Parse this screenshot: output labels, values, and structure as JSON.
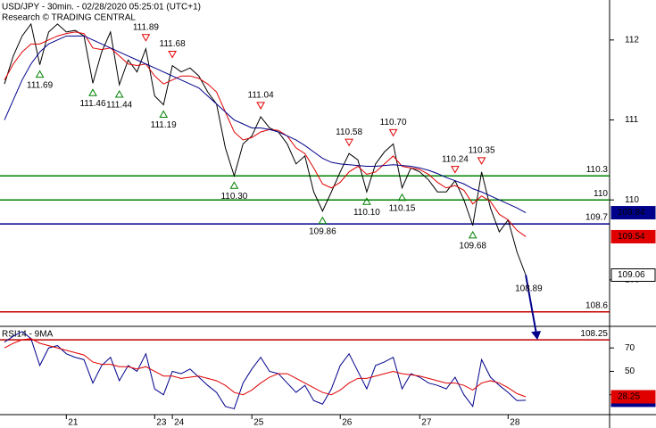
{
  "chart_data": [
    {
      "type": "line",
      "title": "USD/JPY - 30min. - 02/28/2020 05:25:01 (UTC+1)",
      "subtitle": "Research © TRADING CENTRAL",
      "categories": [
        null,
        null,
        null,
        null,
        null,
        null,
        null,
        "21",
        null,
        null,
        null,
        null,
        null,
        null,
        null,
        null,
        null,
        "23",
        null,
        "24",
        null,
        null,
        null,
        null,
        null,
        null,
        null,
        null,
        "25",
        null,
        null,
        null,
        null,
        null,
        null,
        null,
        null,
        null,
        "26",
        null,
        null,
        null,
        null,
        null,
        null,
        null,
        null,
        "27",
        null,
        null,
        null,
        null,
        null,
        null,
        null,
        null,
        null,
        "28",
        null,
        null
      ],
      "ylim": [
        108.43,
        112.5
      ],
      "yticks": [
        109,
        110,
        111,
        112
      ],
      "levels": [
        {
          "value": 110.3,
          "color": "#008000"
        },
        {
          "value": 110,
          "color": "#008000"
        },
        {
          "value": 109.7,
          "color": "#00008b"
        },
        {
          "value": 108.6,
          "color": "#c00000"
        },
        {
          "value": 108.25,
          "color": "#c00000"
        }
      ],
      "target_label": 108.89,
      "series": [
        {
          "color": "#000000",
          "tag": true,
          "values": [
            111.45,
            111.8,
            112.05,
            112.2,
            111.69,
            112.1,
            112.2,
            112.1,
            112.12,
            112.05,
            111.46,
            111.85,
            112.1,
            111.44,
            111.75,
            111.6,
            111.89,
            111.3,
            111.19,
            111.68,
            111.6,
            111.65,
            111.55,
            111.35,
            111.2,
            110.65,
            110.3,
            110.7,
            110.8,
            111.04,
            110.9,
            110.85,
            110.7,
            110.45,
            110.55,
            110.1,
            109.86,
            110.1,
            110.35,
            110.58,
            110.5,
            110.1,
            110.45,
            110.6,
            110.7,
            110.15,
            110.4,
            110.35,
            110.25,
            110.1,
            110.1,
            110.24,
            110.0,
            109.68,
            110.35,
            109.9,
            109.6,
            109.75,
            109.35,
            109.06
          ]
        },
        {
          "color": "#e00000",
          "tag": true,
          "values": [
            111.5,
            111.7,
            111.85,
            111.95,
            111.95,
            112.0,
            112.05,
            112.08,
            112.1,
            112.08,
            111.9,
            111.88,
            111.9,
            111.8,
            111.7,
            111.68,
            111.7,
            111.55,
            111.45,
            111.5,
            111.55,
            111.55,
            111.52,
            111.45,
            111.35,
            111.1,
            110.85,
            110.75,
            110.78,
            110.85,
            110.88,
            110.87,
            110.8,
            110.65,
            110.58,
            110.4,
            110.2,
            110.15,
            110.22,
            110.35,
            110.42,
            110.32,
            110.35,
            110.45,
            110.55,
            110.42,
            110.4,
            110.38,
            110.32,
            110.22,
            110.15,
            110.18,
            110.12,
            109.95,
            110.05,
            109.98,
            109.82,
            109.75,
            109.62,
            109.54
          ]
        },
        {
          "color": "#00008b",
          "tag": true,
          "values": [
            111.0,
            111.25,
            111.5,
            111.7,
            111.85,
            111.95,
            112.0,
            112.05,
            112.05,
            112.05,
            112.0,
            111.95,
            111.9,
            111.85,
            111.8,
            111.75,
            111.7,
            111.65,
            111.6,
            111.55,
            111.5,
            111.45,
            111.4,
            111.3,
            111.2,
            111.1,
            111.0,
            110.95,
            110.9,
            110.9,
            110.88,
            110.85,
            110.8,
            110.75,
            110.68,
            110.6,
            110.52,
            110.47,
            110.45,
            110.44,
            110.43,
            110.42,
            110.42,
            110.43,
            110.44,
            110.43,
            110.42,
            110.4,
            110.37,
            110.33,
            110.28,
            110.24,
            110.2,
            110.14,
            110.1,
            110.05,
            110.0,
            109.95,
            109.9,
            109.84
          ]
        },
        {
          "color": "#e00000",
          "marker": "down",
          "values": [
            null,
            null,
            null,
            null,
            null,
            null,
            null,
            null,
            null,
            null,
            null,
            null,
            null,
            null,
            null,
            null,
            111.89,
            null,
            null,
            111.68,
            null,
            null,
            null,
            null,
            null,
            null,
            null,
            null,
            null,
            111.04,
            null,
            null,
            null,
            null,
            null,
            null,
            null,
            null,
            null,
            110.58,
            null,
            null,
            null,
            null,
            110.7,
            null,
            null,
            null,
            null,
            null,
            null,
            110.24,
            null,
            null,
            110.35,
            null,
            null,
            null,
            null,
            null
          ],
          "value_labels": [
            null,
            null,
            null,
            null,
            null,
            null,
            null,
            null,
            null,
            null,
            null,
            null,
            null,
            null,
            null,
            null,
            "111.89",
            null,
            null,
            "111.68",
            null,
            null,
            null,
            null,
            null,
            null,
            null,
            null,
            null,
            "111.04",
            null,
            null,
            null,
            null,
            null,
            null,
            null,
            null,
            null,
            "110.58",
            null,
            null,
            null,
            null,
            "110.70",
            null,
            null,
            null,
            null,
            null,
            null,
            "110.24",
            null,
            null,
            "110.35",
            null,
            null,
            null,
            null,
            null
          ]
        },
        {
          "color": "#008000",
          "marker": "up",
          "values": [
            null,
            null,
            null,
            null,
            111.69,
            null,
            null,
            null,
            null,
            null,
            111.46,
            null,
            null,
            111.44,
            null,
            null,
            null,
            null,
            111.19,
            null,
            null,
            null,
            null,
            null,
            null,
            null,
            110.3,
            null,
            null,
            null,
            null,
            null,
            null,
            null,
            null,
            null,
            109.86,
            null,
            null,
            null,
            null,
            110.1,
            null,
            null,
            null,
            110.15,
            null,
            null,
            null,
            null,
            null,
            null,
            null,
            109.68,
            null,
            null,
            null,
            null,
            null,
            null
          ],
          "value_labels": [
            null,
            null,
            null,
            null,
            "111.69",
            null,
            null,
            null,
            null,
            null,
            "111.46",
            null,
            null,
            "111.44",
            null,
            null,
            null,
            null,
            "111.19",
            null,
            null,
            null,
            null,
            null,
            null,
            null,
            "110.30",
            null,
            null,
            null,
            null,
            null,
            null,
            null,
            null,
            null,
            "109.86",
            null,
            null,
            null,
            null,
            "110.10",
            null,
            null,
            null,
            "110.15",
            null,
            null,
            null,
            null,
            null,
            null,
            null,
            "109.68",
            null,
            null,
            null,
            null,
            null,
            null
          ]
        }
      ]
    },
    {
      "type": "line",
      "title": "RSI14 - 9MA",
      "ylim": [
        13,
        87.7
      ],
      "yticks": [
        30,
        50,
        70
      ],
      "series": [
        {
          "color": "#00008b",
          "tag": true,
          "values": [
            75,
            80,
            84,
            78,
            55,
            70,
            72,
            65,
            62,
            60,
            40,
            55,
            62,
            42,
            55,
            50,
            65,
            35,
            30,
            50,
            48,
            52,
            45,
            38,
            32,
            20,
            18,
            40,
            52,
            62,
            50,
            48,
            40,
            32,
            38,
            25,
            22,
            35,
            55,
            65,
            50,
            35,
            55,
            58,
            62,
            35,
            48,
            45,
            40,
            38,
            35,
            45,
            30,
            20,
            60,
            45,
            38,
            32,
            25,
            25.2601
          ]
        },
        {
          "color": "#e00000",
          "tag": true,
          "values": [
            70,
            74,
            77,
            78,
            74,
            72,
            70,
            68,
            66,
            64,
            58,
            56,
            56,
            54,
            54,
            52,
            54,
            50,
            46,
            46,
            44,
            45,
            46,
            44,
            42,
            38,
            32,
            30,
            34,
            40,
            45,
            48,
            48,
            44,
            40,
            36,
            32,
            30,
            34,
            40,
            44,
            44,
            46,
            48,
            50,
            48,
            47,
            46,
            44,
            42,
            40,
            40,
            38,
            34,
            40,
            42,
            40,
            36,
            31,
            28.25
          ]
        }
      ]
    }
  ]
}
